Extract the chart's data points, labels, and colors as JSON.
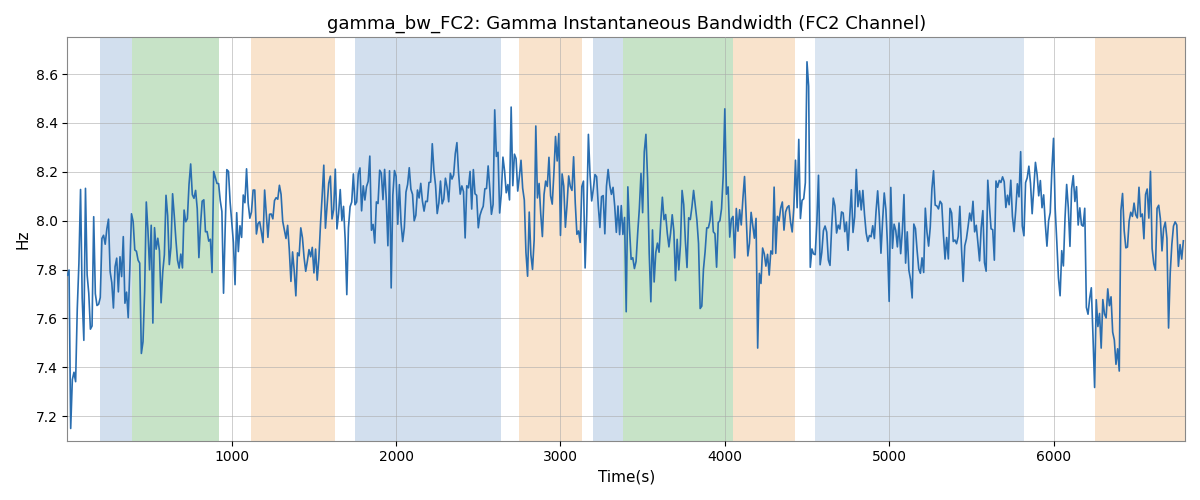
{
  "title": "gamma_bw_FC2: Gamma Instantaneous Bandwidth (FC2 Channel)",
  "xlabel": "Time(s)",
  "ylabel": "Hz",
  "xlim": [
    0,
    6800
  ],
  "ylim": [
    7.1,
    8.75
  ],
  "line_color": "#2a6eb0",
  "line_width": 1.2,
  "bg_bands": [
    {
      "xmin": 200,
      "xmax": 390,
      "color": "#aec6e0",
      "alpha": 0.55
    },
    {
      "xmin": 390,
      "xmax": 920,
      "color": "#90c890",
      "alpha": 0.5
    },
    {
      "xmin": 1120,
      "xmax": 1630,
      "color": "#f5c99a",
      "alpha": 0.5
    },
    {
      "xmin": 1750,
      "xmax": 2640,
      "color": "#aec6e0",
      "alpha": 0.55
    },
    {
      "xmin": 2750,
      "xmax": 3130,
      "color": "#f5c99a",
      "alpha": 0.5
    },
    {
      "xmin": 3200,
      "xmax": 3380,
      "color": "#aec6e0",
      "alpha": 0.55
    },
    {
      "xmin": 3380,
      "xmax": 4050,
      "color": "#90c890",
      "alpha": 0.5
    },
    {
      "xmin": 4050,
      "xmax": 4430,
      "color": "#f5c99a",
      "alpha": 0.5
    },
    {
      "xmin": 4550,
      "xmax": 5820,
      "color": "#aec6e0",
      "alpha": 0.45
    },
    {
      "xmin": 6250,
      "xmax": 6800,
      "color": "#f5c99a",
      "alpha": 0.5
    }
  ],
  "n_samples": 680,
  "dt": 10,
  "seed": 7,
  "title_fontsize": 13,
  "yticks": [
    7.2,
    7.4,
    7.6,
    7.8,
    8.0,
    8.2,
    8.4,
    8.6
  ],
  "xticks": [
    1000,
    2000,
    3000,
    4000,
    5000,
    6000
  ]
}
